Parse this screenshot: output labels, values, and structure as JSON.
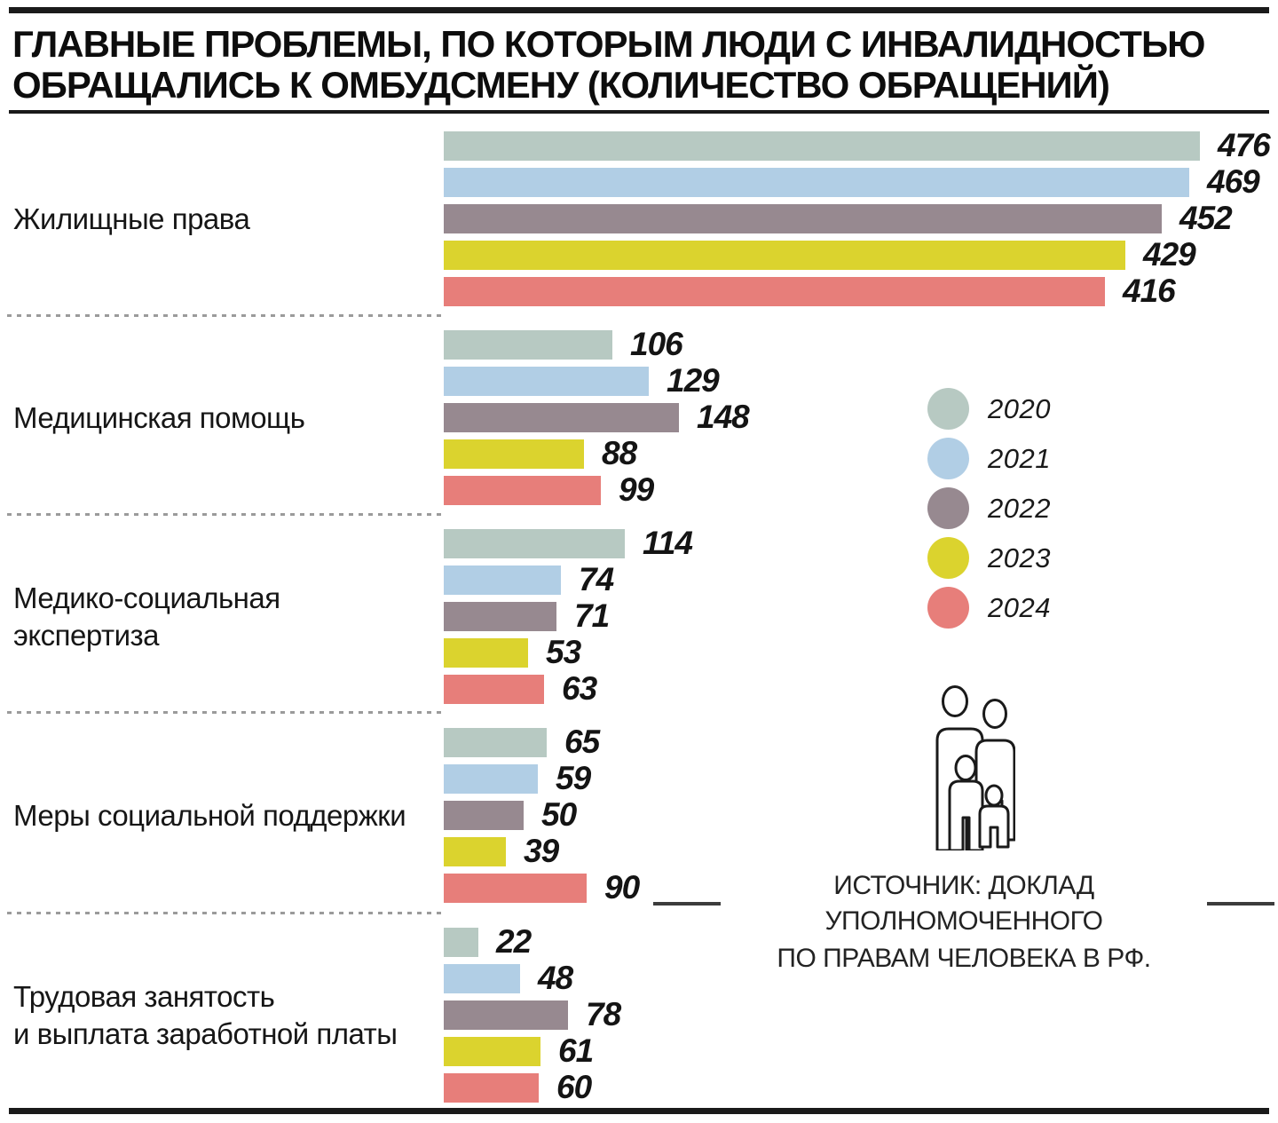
{
  "header": {
    "title_line1": "ГЛАВНЫЕ ПРОБЛЕМЫ, ПО КОТОРЫМ ЛЮДИ С ИНВАЛИДНОСТЬЮ",
    "title_line2": "ОБРАЩАЛИСЬ К ОМБУДСМЕНУ (КОЛИЧЕСТВО ОБРАЩЕНИЙ)"
  },
  "legend": {
    "items": [
      {
        "year": "2020",
        "color": "#b7c9c2"
      },
      {
        "year": "2021",
        "color": "#b1cee5"
      },
      {
        "year": "2022",
        "color": "#978990"
      },
      {
        "year": "2023",
        "color": "#dbd32e"
      },
      {
        "year": "2024",
        "color": "#e77e7a"
      }
    ]
  },
  "source": {
    "line1": "ИСТОЧНИК: ДОКЛАД УПОЛНОМОЧЕННОГО",
    "line2": "ПО ПРАВАМ ЧЕЛОВЕКА В РФ."
  },
  "icons": {
    "family": "family-icon"
  },
  "chart_data": {
    "type": "bar",
    "orientation": "horizontal",
    "title": "ГЛАВНЫЕ ПРОБЛЕМЫ, ПО КОТОРЫМ ЛЮДИ С ИНВАЛИДНОСТЬЮ ОБРАЩАЛИСЬ К ОМБУДСМЕНУ (КОЛИЧЕСТВО ОБРАЩЕНИЙ)",
    "categories": [
      "Жилищные права",
      "Медицинская помощь",
      "Медико-социальная экспертиза",
      "Меры социальной поддержки",
      "Трудовая занятость и выплата заработной платы"
    ],
    "category_lines": [
      [
        "Жилищные права"
      ],
      [
        "Медицинская помощь"
      ],
      [
        "Медико-социальная экспертиза"
      ],
      [
        "Меры социальной поддержки"
      ],
      [
        "Трудовая занятость",
        "и выплата заработной платы"
      ]
    ],
    "series": [
      {
        "name": "2020",
        "color": "#b7c9c2",
        "values": [
          476,
          106,
          114,
          65,
          22
        ]
      },
      {
        "name": "2021",
        "color": "#b1cee5",
        "values": [
          469,
          129,
          74,
          59,
          48
        ]
      },
      {
        "name": "2022",
        "color": "#978990",
        "values": [
          452,
          148,
          71,
          50,
          78
        ]
      },
      {
        "name": "2023",
        "color": "#dbd32e",
        "values": [
          429,
          88,
          53,
          39,
          61
        ]
      },
      {
        "name": "2024",
        "color": "#e77e7a",
        "values": [
          416,
          99,
          63,
          90,
          60
        ]
      }
    ],
    "xlim": [
      0,
      476
    ],
    "value_labels": true,
    "grid": false,
    "legend_position": "right"
  }
}
